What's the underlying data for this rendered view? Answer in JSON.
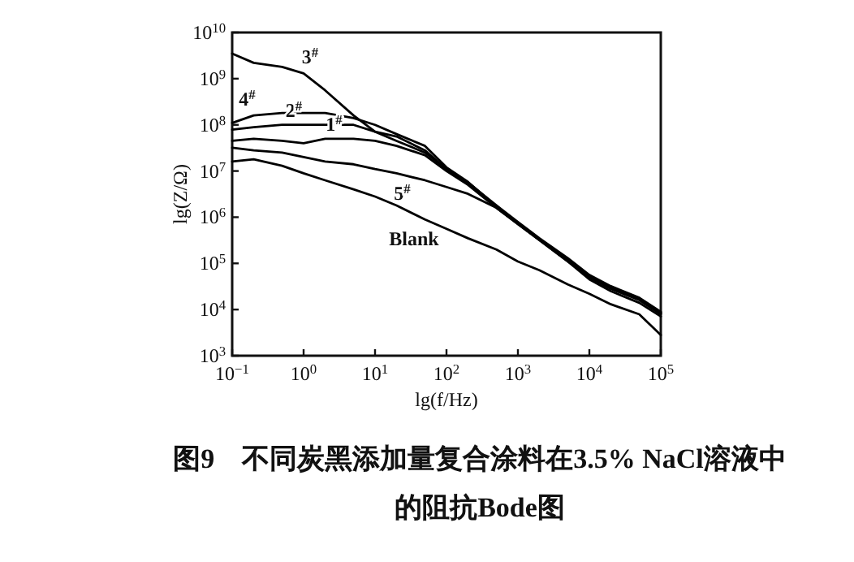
{
  "chart_data": {
    "type": "line",
    "title": "图9　不同炭黑添加量复合涂料在3.5% NaCl溶液中的阻抗Bode图",
    "xlabel": "lg(f/Hz)",
    "ylabel": "lg(Z/Ω)",
    "log": "xy",
    "grid": false,
    "marker": "none",
    "line_style": "solid",
    "x": [
      0.1,
      0.2,
      0.5,
      1,
      2,
      5,
      10,
      20,
      50,
      100,
      200,
      500,
      1000,
      2000,
      5000,
      10000,
      20000,
      50000,
      100000
    ],
    "xlim": [
      0.1,
      100000
    ],
    "ylim": [
      1000,
      10000000000
    ],
    "xticks": [
      {
        "value": 0.1,
        "label": "10$^{−1}$"
      },
      {
        "value": 1,
        "label": "10$^{0}$"
      },
      {
        "value": 10,
        "label": "10$^{1}$"
      },
      {
        "value": 100,
        "label": "10$^{2}$"
      },
      {
        "value": 1000,
        "label": "10$^{3}$"
      },
      {
        "value": 10000,
        "label": "10$^{4}$"
      },
      {
        "value": 100000,
        "label": "10$^{5}$"
      }
    ],
    "yticks": [
      {
        "value": 1000,
        "label": "10$^{3}$"
      },
      {
        "value": 10000,
        "label": "10$^{4}$"
      },
      {
        "value": 100000,
        "label": "10$^{5}$"
      },
      {
        "value": 1000000,
        "label": "10$^{6}$"
      },
      {
        "value": 10000000,
        "label": "10$^{7}$"
      },
      {
        "value": 100000000,
        "label": "10$^{8}$"
      },
      {
        "value": 1000000000,
        "label": "10$^{9}$"
      },
      {
        "value": 10000000000,
        "label": "10$^{10}$"
      }
    ],
    "series": [
      {
        "name": "1$^{#}$",
        "color": "#000000",
        "values": [
          45000000,
          50000000,
          45000000,
          40000000,
          50000000,
          50000000,
          45000000,
          35000000,
          22000000,
          10000000,
          5000000,
          1600000,
          710000,
          320000,
          110000,
          50000,
          28000,
          16000,
          7900
        ]
      },
      {
        "name": "2$^{#}$",
        "color": "#000000",
        "values": [
          79000000,
          89000000,
          100000000,
          100000000,
          100000000,
          100000000,
          71000000,
          56000000,
          28000000,
          11000000,
          5300000,
          1700000,
          740000,
          330000,
          120000,
          52000,
          29000,
          17000,
          8300
        ]
      },
      {
        "name": "3$^{#}$",
        "color": "#000000",
        "values": [
          3500000000,
          2200000000,
          1800000000,
          1300000000,
          560000000,
          160000000,
          71000000,
          45000000,
          25000000,
          11000000,
          5600000,
          1800000,
          790000,
          350000,
          130000,
          56000,
          32000,
          18000,
          8900
        ]
      },
      {
        "name": "4$^{#}$",
        "color": "#000000",
        "values": [
          110000000,
          160000000,
          180000000,
          180000000,
          180000000,
          140000000,
          100000000,
          63000000,
          35000000,
          12000000,
          5800000,
          1700000,
          760000,
          340000,
          120000,
          54000,
          30000,
          17000,
          8500
        ]
      },
      {
        "name": "5$^{#}$",
        "color": "#000000",
        "values": [
          32000000,
          28000000,
          25000000,
          20000000,
          16000000,
          14000000,
          11000000,
          8900000,
          6300000,
          4500000,
          3200000,
          1600000,
          710000,
          320000,
          110000,
          45000,
          25000,
          14000,
          7100
        ]
      },
      {
        "name": "Blank",
        "color": "#000000",
        "values": [
          16000000,
          18000000,
          13000000,
          8900000,
          6300000,
          4000000,
          2800000,
          1800000,
          890000,
          560000,
          350000,
          200000,
          110000,
          71000,
          35000,
          22000,
          13000,
          7900,
          2800
        ]
      }
    ]
  }
}
